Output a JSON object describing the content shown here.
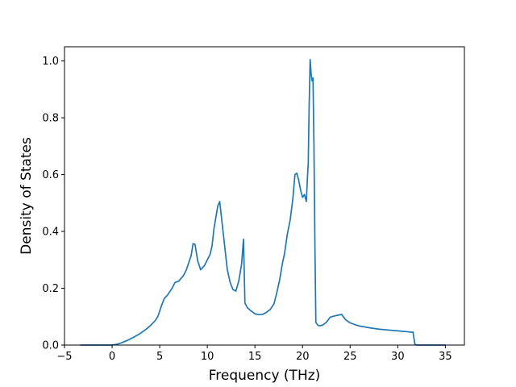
{
  "chart_data": {
    "type": "line",
    "title": "",
    "xlabel": "Frequency (THz)",
    "ylabel": "Density of States",
    "xlim": [
      -5,
      37
    ],
    "ylim": [
      0,
      1.05
    ],
    "xticks": [
      -5,
      0,
      5,
      10,
      15,
      20,
      25,
      30,
      35
    ],
    "xtick_labels": [
      "−5",
      "0",
      "5",
      "10",
      "15",
      "20",
      "25",
      "30",
      "35"
    ],
    "yticks": [
      0.0,
      0.2,
      0.4,
      0.6,
      0.8,
      1.0
    ],
    "ytick_labels": [
      "0.0",
      "0.2",
      "0.4",
      "0.6",
      "0.8",
      "1.0"
    ],
    "grid": false,
    "series": [
      {
        "color": "#1f77b4",
        "x": [
          -3.3,
          -1,
          0,
          0.5,
          1,
          1.5,
          2,
          2.5,
          3,
          3.5,
          4,
          4.5,
          4.8,
          5,
          5.2,
          5.5,
          5.8,
          6,
          6.3,
          6.6,
          7,
          7.5,
          7.8,
          8.1,
          8.3,
          8.5,
          8.7,
          9,
          9.3,
          9.7,
          10,
          10.3,
          10.5,
          10.7,
          10.9,
          11.1,
          11.3,
          11.5,
          11.8,
          12.1,
          12.4,
          12.7,
          13,
          13.3,
          13.6,
          13.8,
          13.95,
          14.2,
          14.6,
          15,
          15.4,
          15.8,
          16.2,
          16.6,
          17,
          17.3,
          17.6,
          17.9,
          18.1,
          18.4,
          18.7,
          19,
          19.2,
          19.4,
          19.6,
          19.8,
          20,
          20.2,
          20.4,
          20.5,
          20.6,
          20.7,
          20.8,
          20.9,
          21.0,
          21.1,
          21.2,
          21.3,
          21.4,
          21.6,
          21.8,
          22.1,
          22.5,
          22.9,
          23.3,
          23.7,
          24.1,
          24.5,
          24.7,
          25,
          25.5,
          26,
          27,
          28,
          29,
          30,
          31,
          31.5,
          31.6,
          31.8,
          32.0,
          32.3,
          33,
          34,
          35
        ],
        "y": [
          0,
          0,
          0.0,
          0.003,
          0.008,
          0.015,
          0.023,
          0.032,
          0.042,
          0.054,
          0.068,
          0.085,
          0.1,
          0.12,
          0.14,
          0.165,
          0.175,
          0.185,
          0.2,
          0.22,
          0.225,
          0.245,
          0.265,
          0.295,
          0.315,
          0.357,
          0.355,
          0.295,
          0.265,
          0.28,
          0.3,
          0.32,
          0.35,
          0.41,
          0.45,
          0.49,
          0.505,
          0.445,
          0.355,
          0.265,
          0.22,
          0.195,
          0.19,
          0.225,
          0.285,
          0.373,
          0.148,
          0.132,
          0.12,
          0.11,
          0.107,
          0.108,
          0.115,
          0.125,
          0.145,
          0.185,
          0.23,
          0.29,
          0.32,
          0.39,
          0.44,
          0.52,
          0.6,
          0.605,
          0.58,
          0.545,
          0.52,
          0.53,
          0.505,
          0.58,
          0.64,
          0.85,
          1.005,
          0.955,
          0.93,
          0.94,
          0.7,
          0.35,
          0.08,
          0.07,
          0.068,
          0.07,
          0.08,
          0.098,
          0.102,
          0.105,
          0.108,
          0.09,
          0.085,
          0.078,
          0.072,
          0.067,
          0.061,
          0.056,
          0.053,
          0.05,
          0.047,
          0.045,
          0.046,
          0.003,
          0,
          0,
          0,
          0,
          0
        ]
      }
    ]
  }
}
